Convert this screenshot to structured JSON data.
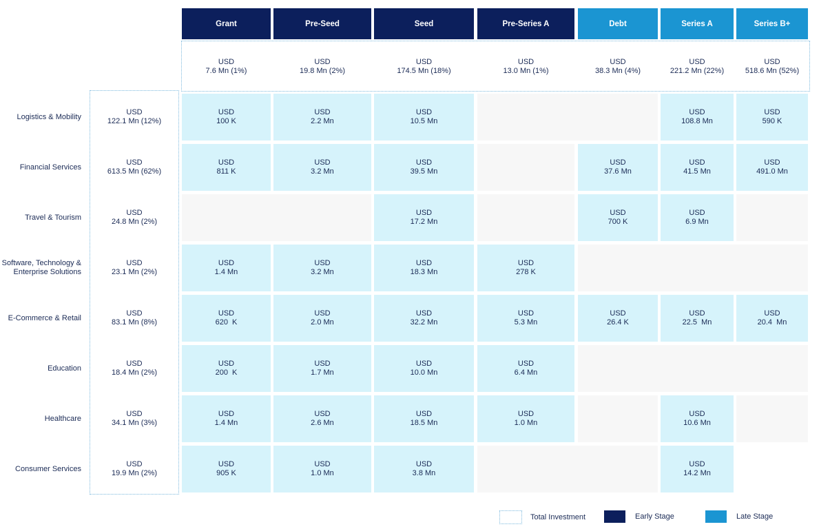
{
  "chart_data": {
    "type": "table",
    "stages": [
      {
        "label": "Grant",
        "group": "early",
        "total": "7.6 Mn (1%)"
      },
      {
        "label": "Pre-Seed",
        "group": "early",
        "total": "19.8 Mn (2%)"
      },
      {
        "label": "Seed",
        "group": "early",
        "total": "174.5 Mn (18%)"
      },
      {
        "label": "Pre-Series A",
        "group": "early",
        "total": "13.0 Mn (1%)"
      },
      {
        "label": "Debt",
        "group": "late",
        "total": "38.3 Mn (4%)"
      },
      {
        "label": "Series A",
        "group": "late",
        "total": "221.2 Mn (22%)"
      },
      {
        "label": "Series B+",
        "group": "late",
        "total": "518.6 Mn (52%)"
      }
    ],
    "currency": "USD",
    "sectors": [
      {
        "label": "Logistics & Mobility",
        "total": "122.1 Mn (12%)",
        "values": [
          "100 K",
          "2.2 Mn",
          "10.5 Mn",
          null,
          null,
          "108.8 Mn",
          "590 K"
        ]
      },
      {
        "label": "Financial Services",
        "total": "613.5 Mn (62%)",
        "values": [
          "811 K",
          "3.2 Mn",
          "39.5 Mn",
          null,
          "37.6 Mn",
          "41.5 Mn",
          "491.0 Mn"
        ]
      },
      {
        "label": "Travel & Tourism",
        "total": "24.8 Mn (2%)",
        "values": [
          null,
          null,
          "17.2 Mn",
          null,
          "700 K",
          "6.9 Mn",
          null
        ]
      },
      {
        "label": "Software, Technology &\nEnterprise Solutions",
        "total": "23.1 Mn (2%)",
        "values": [
          "1.4 Mn",
          "3.2 Mn",
          "18.3 Mn",
          "278 K",
          null,
          null,
          null
        ]
      },
      {
        "label": "E-Commerce & Retail",
        "total": "83.1 Mn (8%)",
        "values": [
          "620  K",
          "2.0 Mn",
          "32.2 Mn",
          "5.3 Mn",
          "26.4 K",
          "22.5  Mn",
          "20.4  Mn"
        ]
      },
      {
        "label": "Education",
        "total": "18.4 Mn (2%)",
        "values": [
          "200  K",
          "1.7 Mn",
          "10.0 Mn",
          "6.4 Mn",
          null,
          null,
          null
        ]
      },
      {
        "label": "Healthcare",
        "total": "34.1 Mn  (3%)",
        "values": [
          "1.4 Mn",
          "2.6 Mn",
          "18.5 Mn",
          "1.0 Mn",
          null,
          "10.6 Mn",
          null
        ]
      },
      {
        "label": "Consumer Services",
        "total": "19.9 Mn (2%)",
        "values": [
          "905 K",
          "1.0 Mn",
          "3.8 Mn",
          null,
          null,
          "14.2 Mn",
          null
        ]
      }
    ],
    "empty_cells": [
      {
        "row": 0,
        "from": 3,
        "to": 4
      },
      {
        "row": 1,
        "from": 3,
        "to": 3
      },
      {
        "row": 2,
        "from": 0,
        "to": 1
      },
      {
        "row": 2,
        "from": 3,
        "to": 3
      },
      {
        "row": 2,
        "from": 6,
        "to": 6
      },
      {
        "row": 3,
        "from": 4,
        "to": 6
      },
      {
        "row": 5,
        "from": 4,
        "to": 6
      },
      {
        "row": 6,
        "from": 4,
        "to": 4
      },
      {
        "row": 6,
        "from": 6,
        "to": 6
      },
      {
        "row": 7,
        "from": 3,
        "to": 4
      }
    ],
    "legend": [
      {
        "label": "Total Investment",
        "style": "dotted"
      },
      {
        "label": "Early Stage",
        "color": "#0c1f5c"
      },
      {
        "label": "Late Stage",
        "color": "#1b95d2"
      }
    ],
    "colors": {
      "early": "#0c1f5c",
      "late": "#1b95d2",
      "cell": "#d6f3fb",
      "empty": "#f7f7f7",
      "dotted": "#7ab8dd"
    }
  }
}
